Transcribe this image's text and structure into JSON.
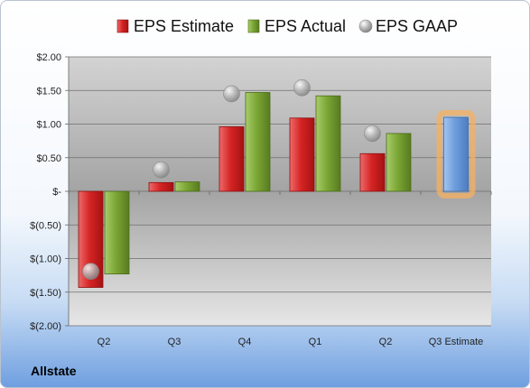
{
  "company": "Allstate",
  "chart_data": {
    "type": "bar",
    "title": "",
    "xlabel": "",
    "ylabel": "",
    "categories": [
      "Q2",
      "Q3",
      "Q4",
      "Q1",
      "Q2",
      "Q3 Estimate"
    ],
    "series": [
      {
        "name": "EPS Estimate",
        "kind": "bar",
        "color": "#cc1f1f",
        "values": [
          -1.43,
          0.13,
          0.96,
          1.09,
          0.56,
          null
        ]
      },
      {
        "name": "EPS Actual",
        "kind": "bar",
        "color": "#6f9a2c",
        "values": [
          -1.23,
          0.14,
          1.47,
          1.42,
          0.86,
          null
        ]
      },
      {
        "name": "EPS GAAP",
        "kind": "scatter",
        "color": "#a8a8a8",
        "values": [
          -1.19,
          0.32,
          1.45,
          1.54,
          0.86,
          null
        ]
      },
      {
        "name": "Q3 Estimate",
        "kind": "bar",
        "color": "#6a9ad8",
        "highlight": "#f5b060",
        "values": [
          null,
          null,
          null,
          null,
          null,
          1.1
        ]
      }
    ],
    "ylim": [
      -2.0,
      2.0
    ],
    "yticks": [
      2.0,
      1.5,
      1.0,
      0.5,
      0.0,
      -0.5,
      -1.0,
      -1.5,
      -2.0
    ],
    "ytick_labels": [
      "$2.00",
      "$1.50",
      "$1.00",
      "$0.50",
      "$-",
      "$(0.50)",
      "$(1.00)",
      "$(1.50)",
      "$(2.00)"
    ],
    "legend": {
      "position": "top",
      "entries": [
        "EPS Estimate",
        "EPS Actual",
        "EPS GAAP"
      ]
    },
    "grid": true
  }
}
